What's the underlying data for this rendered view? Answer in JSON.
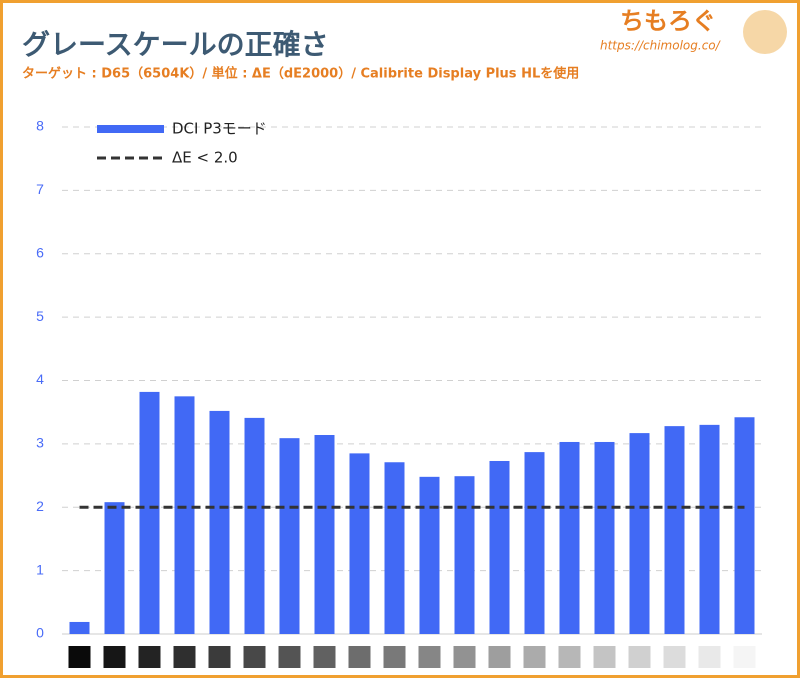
{
  "chart_data": {
    "type": "bar",
    "title": "グレースケールの正確さ",
    "subtitle": "ターゲット : D65（6504K）/ 単位 : ΔE（dE2000）/ Calibrite Display Plus HLを使用",
    "logo": "ちもろぐ",
    "logo_url": "https://chimolog.co/",
    "categories": [
      null,
      null,
      null,
      null,
      null,
      null,
      null,
      null,
      null,
      null,
      null,
      null,
      null,
      null,
      null,
      null,
      null,
      null,
      null,
      null
    ],
    "series": [
      {
        "name": "DCI P3モード",
        "color": "#4169f5",
        "values": [
          0.19,
          2.08,
          3.82,
          3.75,
          3.52,
          3.41,
          3.09,
          3.14,
          2.85,
          2.71,
          2.48,
          2.49,
          2.73,
          2.87,
          3.03,
          3.03,
          3.17,
          3.28,
          3.3,
          3.42
        ]
      }
    ],
    "reference_lines": [
      {
        "name": "ΔE < 2.0",
        "value": 2,
        "color": "#333333"
      }
    ],
    "ylim": [
      0,
      8
    ],
    "yticks": [
      0,
      1,
      2,
      3,
      4,
      5,
      6,
      7,
      8
    ],
    "grid": true
  }
}
